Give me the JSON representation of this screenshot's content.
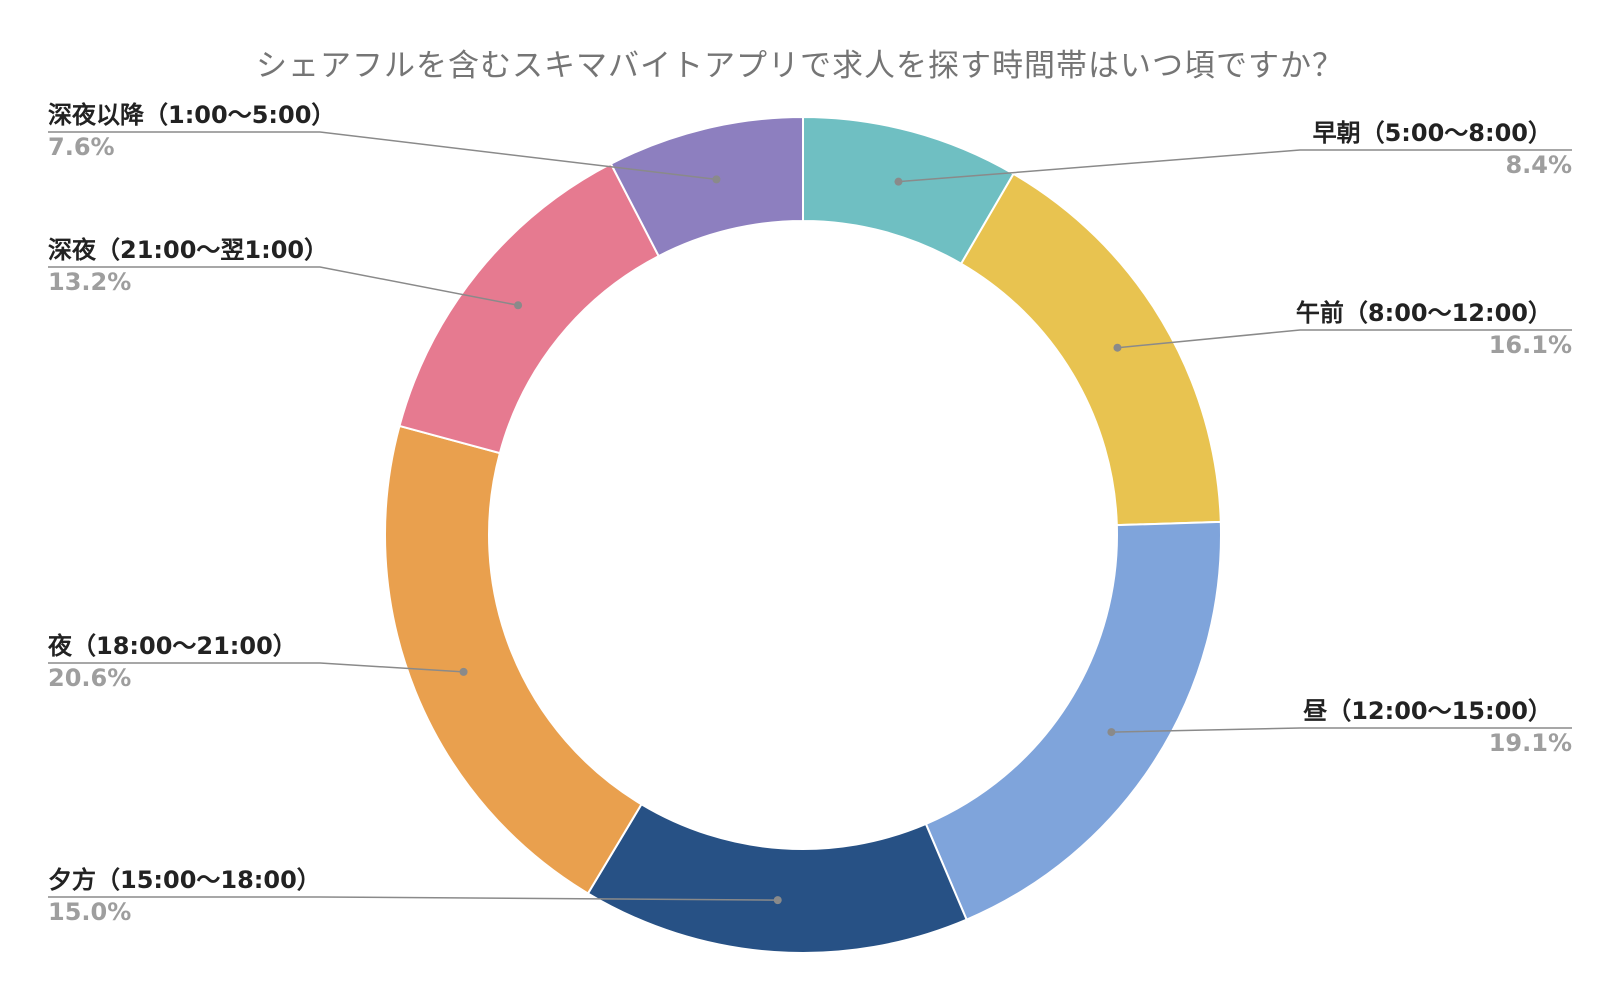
{
  "chart_data": {
    "type": "pie",
    "variant": "donut",
    "title": "シェアフルを含むスキマバイトアプリで求人を探す時間帯はいつ頃ですか？",
    "legend": "none",
    "slices": [
      {
        "label": "早朝（5:00〜8:00）",
        "value": 8.4,
        "value_label": "8.4%",
        "color": "#6fbfc2"
      },
      {
        "label": "午前（8:00〜12:00）",
        "value": 16.1,
        "value_label": "16.1%",
        "color": "#e8c350"
      },
      {
        "label": "昼（12:00〜15:00）",
        "value": 19.1,
        "value_label": "19.1%",
        "color": "#7fa4db"
      },
      {
        "label": "夕方（15:00〜18:00）",
        "value": 15.0,
        "value_label": "15.0%",
        "color": "#275185"
      },
      {
        "label": "夜（18:00〜21:00）",
        "value": 20.6,
        "value_label": "20.6%",
        "color": "#e9a04e"
      },
      {
        "label": "深夜（21:00〜翌1:00）",
        "value": 13.2,
        "value_label": "13.2%",
        "color": "#e67a90"
      },
      {
        "label": "深夜以降（1:00〜5:00）",
        "value": 7.6,
        "value_label": "7.6%",
        "color": "#8d7fbf"
      }
    ]
  }
}
